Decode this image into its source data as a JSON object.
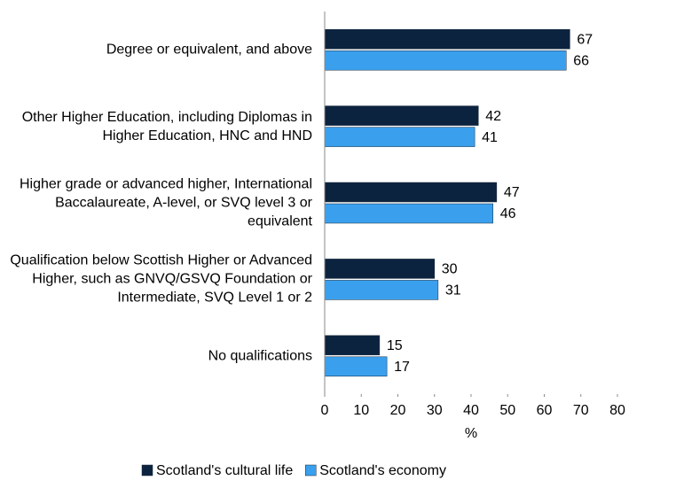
{
  "chart_data": {
    "type": "hbar",
    "categories": [
      "Degree or equivalent, and above",
      "Other Higher Education, including Diplomas in Higher Education, HNC and HND",
      "Higher grade or advanced higher, International Baccalaureate, A-level, or SVQ level 3 or equivalent",
      "Qualification below Scottish Higher or Advanced Higher, such as GNVQ/GSVQ Foundation or Intermediate, SVQ Level 1 or 2",
      "No qualifications"
    ],
    "series": [
      {
        "name": "Scotland's cultural life",
        "color": "#0c2340",
        "values": [
          67,
          42,
          47,
          30,
          15
        ]
      },
      {
        "name": "Scotland's economy",
        "color": "#3aa0ee",
        "values": [
          66,
          41,
          46,
          31,
          17
        ]
      }
    ],
    "xlabel": "%",
    "xlim": [
      0,
      80
    ],
    "xticks": [
      0,
      10,
      20,
      30,
      40,
      50,
      60,
      70,
      80
    ],
    "legend": "bottom"
  }
}
